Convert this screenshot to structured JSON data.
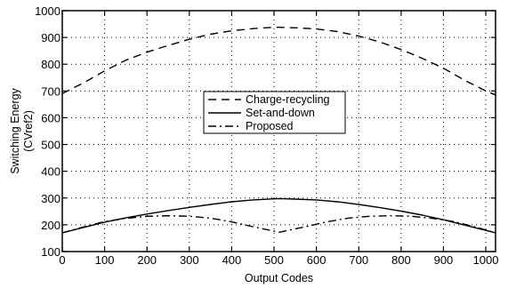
{
  "chart_data": {
    "type": "line",
    "title": "",
    "xlabel": "Output Codes",
    "ylabel_lines": [
      "Switching Energy",
      "(CVref2)"
    ],
    "xlim": [
      0,
      1023
    ],
    "ylim": [
      100,
      1000
    ],
    "xticks": [
      0,
      100,
      200,
      300,
      400,
      500,
      600,
      700,
      800,
      900,
      1000
    ],
    "yticks": [
      100,
      200,
      300,
      400,
      500,
      600,
      700,
      800,
      900,
      1000
    ],
    "grid": true,
    "grid_style": "dotted",
    "legend_placement": "center",
    "series": [
      {
        "name": "Charge-recycling",
        "line_style": "dashed",
        "color": "#000000",
        "x": [
          0,
          50,
          100,
          150,
          200,
          250,
          300,
          350,
          400,
          450,
          500,
          512,
          550,
          600,
          650,
          700,
          750,
          800,
          850,
          900,
          950,
          1000,
          1023
        ],
        "y": [
          690,
          730,
          775,
          815,
          845,
          870,
          893,
          912,
          925,
          933,
          938,
          938,
          936,
          932,
          922,
          905,
          883,
          855,
          822,
          785,
          740,
          700,
          685
        ]
      },
      {
        "name": "Set-and-down",
        "line_style": "solid",
        "color": "#000000",
        "x": [
          0,
          50,
          100,
          150,
          200,
          250,
          300,
          350,
          400,
          450,
          500,
          512,
          550,
          600,
          650,
          700,
          750,
          800,
          850,
          900,
          950,
          1000,
          1023
        ],
        "y": [
          170,
          190,
          210,
          226,
          240,
          253,
          265,
          276,
          286,
          293,
          297,
          298,
          296,
          293,
          286,
          276,
          264,
          251,
          236,
          219,
          199,
          179,
          170
        ]
      },
      {
        "name": "Proposed",
        "line_style": "dash-dot",
        "color": "#000000",
        "x": [
          0,
          50,
          100,
          150,
          200,
          250,
          300,
          350,
          400,
          450,
          512,
          575,
          625,
          675,
          725,
          775,
          825,
          875,
          925,
          975,
          1023
        ],
        "y": [
          170,
          192,
          212,
          224,
          232,
          234,
          232,
          225,
          211,
          193,
          172,
          193,
          211,
          225,
          232,
          234,
          232,
          224,
          212,
          192,
          170
        ]
      }
    ]
  }
}
